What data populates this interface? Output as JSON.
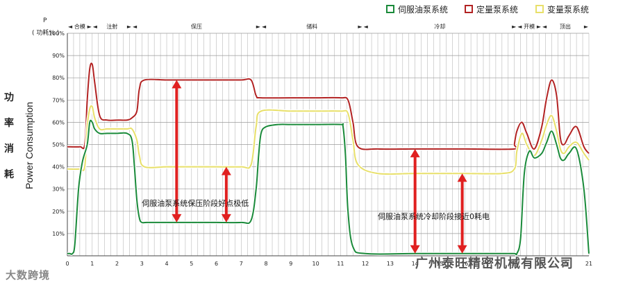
{
  "legend": [
    {
      "name": "伺服油泵系统",
      "color": "#1a8a3a"
    },
    {
      "name": "定量泵系统",
      "color": "#b22222"
    },
    {
      "name": "变量泵系统",
      "color": "#e8e06a"
    }
  ],
  "y_axis": {
    "unit_symbol": "P",
    "unit_label": "( 功耗% )",
    "title_cn": [
      "功",
      "率",
      "消",
      "耗"
    ],
    "title_en": "Power Consumption"
  },
  "phases": [
    "合模",
    "注射",
    "保压",
    "储料",
    "冷却",
    "开模",
    "顶出"
  ],
  "annotations": [
    "伺服油泵系统保压阶段好点极低",
    "伺服油泵系统冷却阶段接近0耗电"
  ],
  "watermarks": {
    "left": "大数跨境",
    "right": "广州泰旺精密机械有限公司"
  },
  "chart_data": {
    "type": "line",
    "xlim": [
      0,
      21
    ],
    "ylim": [
      0,
      100
    ],
    "x_ticks": [
      0,
      1,
      2,
      3,
      4,
      5,
      6,
      7,
      8,
      9,
      10,
      11,
      12,
      13,
      14,
      15,
      16,
      17,
      18,
      19,
      20,
      21
    ],
    "y_ticks": [
      "10%",
      "20%",
      "30%",
      "40%",
      "50%",
      "60%",
      "70%",
      "80%",
      "90%",
      "100%"
    ],
    "phases": [
      {
        "label": "合模",
        "start": 0,
        "end": 1
      },
      {
        "label": "注射",
        "start": 1,
        "end": 2.6
      },
      {
        "label": "保压",
        "start": 2.6,
        "end": 7.8
      },
      {
        "label": "储料",
        "start": 7.8,
        "end": 11.9
      },
      {
        "label": "冷却",
        "start": 11.9,
        "end": 18.1
      },
      {
        "label": "开模",
        "start": 18.1,
        "end": 19.1
      },
      {
        "label": "顶出",
        "start": 19.1,
        "end": 21
      }
    ],
    "series": [
      {
        "name": "定量泵系统",
        "color": "#b22222",
        "x": [
          0,
          0.5,
          0.7,
          0.8,
          0.9,
          1.0,
          1.1,
          1.3,
          1.6,
          2.0,
          2.4,
          2.6,
          2.8,
          2.9,
          3.1,
          4,
          5,
          6,
          7,
          7.4,
          7.6,
          7.8,
          9,
          10,
          11,
          11.3,
          11.5,
          11.7,
          12.5,
          14,
          16,
          18,
          18,
          18.1,
          18.3,
          18.5,
          18.8,
          19.1,
          19.3,
          19.5,
          19.7,
          19.85,
          20,
          20.2,
          20.5,
          20.8,
          21
        ],
        "y": [
          49,
          49,
          50,
          70,
          84,
          86,
          78,
          63,
          61,
          61,
          61,
          62,
          65,
          75,
          79,
          79,
          79,
          79,
          79,
          79,
          72,
          71,
          71,
          71,
          71,
          70,
          60,
          49,
          48,
          48,
          48,
          48,
          50,
          56,
          60,
          55,
          48,
          58,
          71,
          79,
          72,
          53,
          50,
          54,
          58,
          49,
          46
        ]
      },
      {
        "name": "变量泵系统",
        "color": "#e8e06a",
        "x": [
          0,
          0.5,
          0.7,
          0.8,
          0.9,
          1.0,
          1.1,
          1.3,
          1.6,
          2.0,
          2.4,
          2.6,
          2.8,
          2.9,
          3.1,
          4,
          5,
          6,
          7,
          7.4,
          7.6,
          7.8,
          9,
          10,
          11,
          11.3,
          11.5,
          11.7,
          12.5,
          14,
          16,
          17.5,
          18,
          18.1,
          18.3,
          18.5,
          18.8,
          19.1,
          19.3,
          19.5,
          19.7,
          19.85,
          20,
          20.2,
          20.5,
          20.8,
          21
        ],
        "y": [
          39,
          39,
          40,
          58,
          66,
          67,
          62,
          57,
          57,
          57,
          57,
          57,
          52,
          45,
          40,
          40,
          40,
          40,
          40,
          41,
          58,
          65,
          65,
          65,
          65,
          64,
          52,
          41,
          37,
          37,
          37,
          37,
          39,
          47,
          55,
          50,
          45,
          52,
          59,
          63,
          56,
          48,
          46,
          49,
          51,
          46,
          43
        ]
      },
      {
        "name": "伺服油泵系统",
        "color": "#1a8a3a",
        "x": [
          0,
          0.1,
          0.2,
          0.3,
          0.45,
          0.6,
          0.8,
          0.9,
          1.0,
          1.1,
          1.3,
          1.6,
          2.0,
          2.4,
          2.6,
          2.7,
          2.8,
          2.9,
          3.0,
          3.2,
          4,
          5,
          6,
          7,
          7.4,
          7.6,
          7.7,
          7.8,
          8,
          8.5,
          9,
          10,
          11,
          11.1,
          11.2,
          11.3,
          11.5,
          12,
          14,
          16,
          17.5,
          18,
          18.1,
          18.25,
          18.4,
          18.6,
          18.8,
          19.1,
          19.3,
          19.5,
          19.7,
          19.85,
          20,
          20.2,
          20.5,
          20.8,
          21
        ],
        "y": [
          1,
          1,
          1,
          5,
          30,
          42,
          50,
          60,
          60,
          57,
          55,
          55,
          55,
          55,
          52,
          40,
          25,
          17,
          15,
          15,
          15,
          15,
          15,
          15,
          16,
          30,
          45,
          55,
          58,
          59,
          59,
          59,
          59,
          58,
          45,
          20,
          4,
          1,
          1,
          1,
          1,
          1,
          1,
          8,
          37,
          47,
          44,
          46,
          51,
          56,
          50,
          44,
          43,
          46,
          48,
          30,
          1
        ]
      }
    ],
    "arrows": [
      {
        "x": 4.4,
        "y1": 15,
        "y2": 79
      },
      {
        "x": 6.4,
        "y1": 15,
        "y2": 40
      },
      {
        "x": 14.0,
        "y1": 1,
        "y2": 48
      },
      {
        "x": 15.9,
        "y1": 1,
        "y2": 37
      }
    ]
  }
}
